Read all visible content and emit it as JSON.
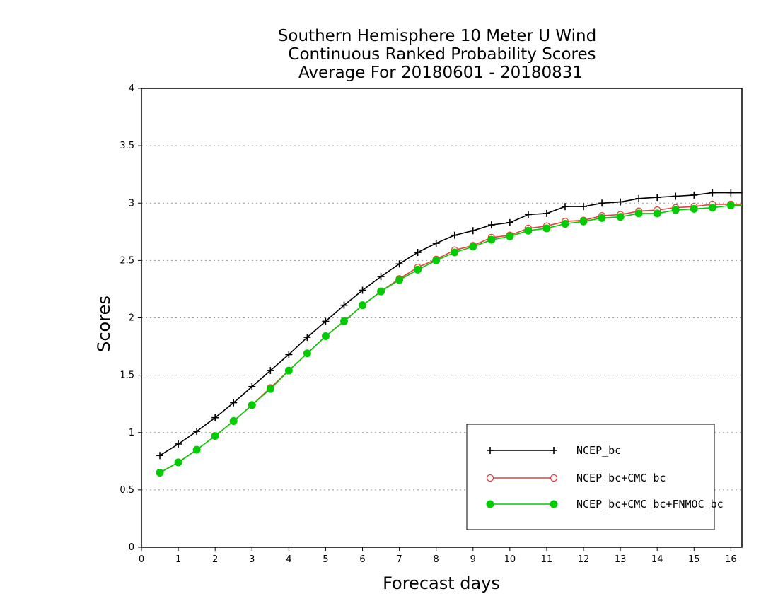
{
  "chart_data": {
    "type": "line",
    "title_lines": [
      "Southern Hemisphere 10 Meter U Wind",
      "Continuous Ranked Probability Scores",
      "Average For 20180601 - 20180831"
    ],
    "xlabel": "Forecast days",
    "ylabel": "Scores",
    "xlim": [
      0,
      16.3
    ],
    "ylim": [
      0,
      4
    ],
    "xticks": [
      "0",
      "1",
      "2",
      "3",
      "4",
      "5",
      "6",
      "7",
      "8",
      "9",
      "10",
      "11",
      "12",
      "13",
      "14",
      "15",
      "16"
    ],
    "yticks": [
      "0",
      "0.5",
      "1",
      "1.5",
      "2",
      "2.5",
      "3",
      "3.5",
      "4"
    ],
    "grid": "horizontal dotted",
    "legend_position": "bottom-right",
    "x": [
      0.5,
      1,
      1.5,
      2,
      2.5,
      3,
      3.5,
      4,
      4.5,
      5,
      5.5,
      6,
      6.5,
      7,
      7.5,
      8,
      8.5,
      9,
      9.5,
      10,
      10.5,
      11,
      11.5,
      12,
      12.5,
      13,
      13.5,
      14,
      14.5,
      15,
      15.5,
      16
    ],
    "series": [
      {
        "name": "NCEP_bc",
        "color": "#000000",
        "marker": "plus",
        "values": [
          0.8,
          0.9,
          1.01,
          1.13,
          1.26,
          1.4,
          1.54,
          1.68,
          1.83,
          1.97,
          2.11,
          2.24,
          2.36,
          2.47,
          2.57,
          2.65,
          2.72,
          2.76,
          2.81,
          2.83,
          2.9,
          2.91,
          2.97,
          2.97,
          3.0,
          3.01,
          3.04,
          3.05,
          3.06,
          3.07,
          3.09,
          3.09
        ]
      },
      {
        "name": "NCEP_bc+CMC_bc",
        "color": "#ee3b3b",
        "marker": "circle-open",
        "values": [
          0.65,
          0.74,
          0.85,
          0.97,
          1.1,
          1.24,
          1.39,
          1.54,
          1.69,
          1.84,
          1.97,
          2.11,
          2.23,
          2.34,
          2.44,
          2.51,
          2.59,
          2.63,
          2.7,
          2.72,
          2.78,
          2.8,
          2.84,
          2.85,
          2.89,
          2.9,
          2.93,
          2.94,
          2.96,
          2.97,
          2.99,
          2.99
        ]
      },
      {
        "name": "NCEP_bc+CMC_bc+FNMOC_bc",
        "color": "#00cc00",
        "marker": "circle-filled",
        "values": [
          0.65,
          0.74,
          0.85,
          0.97,
          1.1,
          1.24,
          1.38,
          1.54,
          1.69,
          1.84,
          1.97,
          2.11,
          2.23,
          2.33,
          2.42,
          2.5,
          2.57,
          2.62,
          2.68,
          2.71,
          2.76,
          2.78,
          2.82,
          2.84,
          2.87,
          2.88,
          2.91,
          2.91,
          2.94,
          2.95,
          2.96,
          2.98
        ]
      }
    ]
  }
}
